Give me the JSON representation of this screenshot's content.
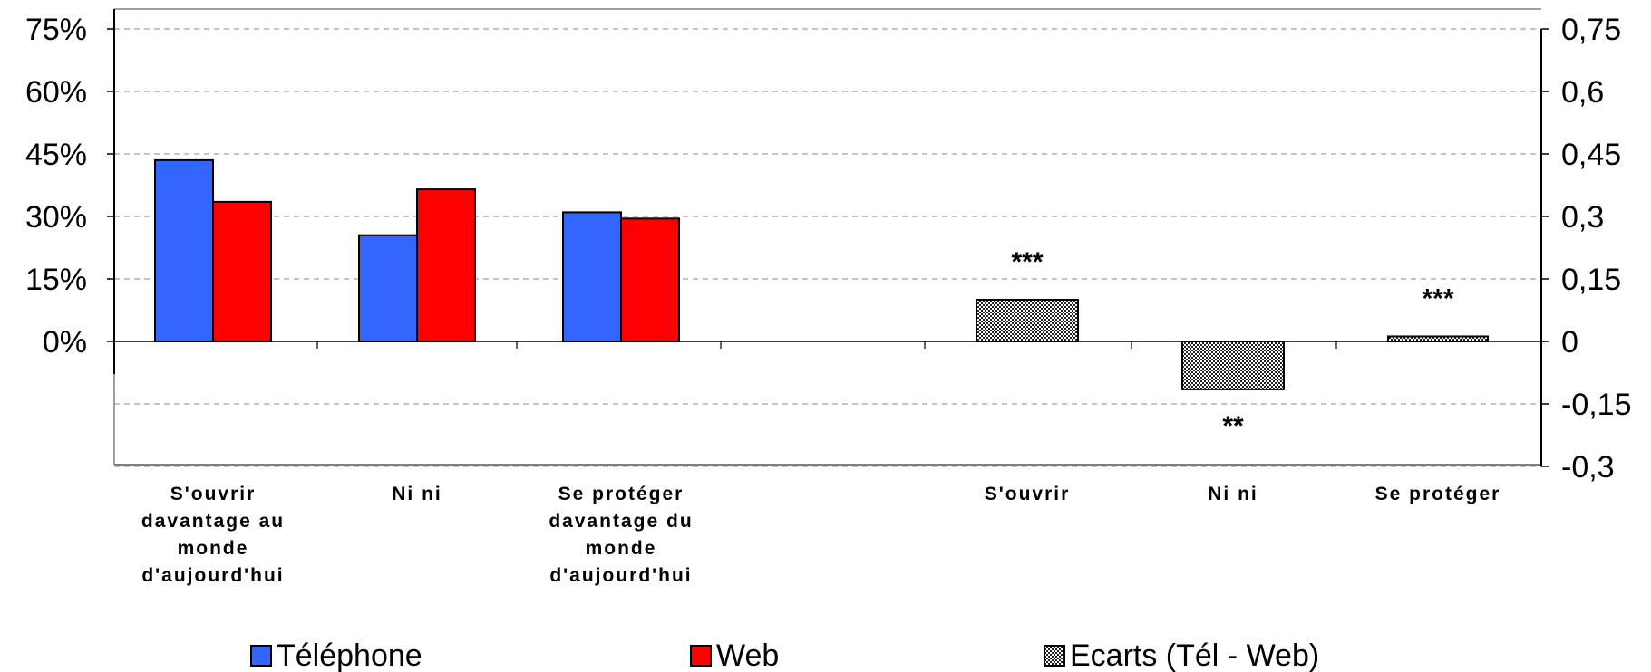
{
  "chart_data": {
    "type": "bar",
    "left_axis": {
      "ticks": [
        "75%",
        "60%",
        "45%",
        "30%",
        "15%",
        "0%"
      ],
      "tick_values": [
        75,
        60,
        45,
        30,
        15,
        0
      ],
      "range": [
        -30,
        75
      ],
      "unit": "%"
    },
    "right_axis": {
      "ticks": [
        "0,75",
        "0,6",
        "0,45",
        "0,3",
        "0,15",
        "0",
        "-0,15",
        "-0,3"
      ],
      "tick_values": [
        0.75,
        0.6,
        0.45,
        0.3,
        0.15,
        0,
        -0.15,
        -0.3
      ],
      "range": [
        -0.3,
        0.75
      ]
    },
    "grid": true,
    "groups_left": [
      {
        "label_lines": [
          "S'ouvrir",
          "davantage au",
          "monde",
          "d'aujourd'hui"
        ],
        "telephone": 43.5,
        "web": 33.5
      },
      {
        "label_lines": [
          "Ni ni"
        ],
        "telephone": 25.5,
        "web": 36.5
      },
      {
        "label_lines": [
          "Se protéger",
          "davantage du",
          "monde",
          "d'aujourd'hui"
        ],
        "telephone": 31,
        "web": 29.5
      }
    ],
    "groups_right": [
      {
        "label_lines": [
          "S'ouvrir"
        ],
        "ecart": 0.1,
        "sig": "***"
      },
      {
        "label_lines": [
          "Ni ni"
        ],
        "ecart": -0.115,
        "sig": "**"
      },
      {
        "label_lines": [
          "Se protéger"
        ],
        "ecart": 0.012,
        "sig": "***"
      }
    ],
    "series": [
      {
        "key": "telephone",
        "name": "Téléphone",
        "color": "#3366ff"
      },
      {
        "key": "web",
        "name": "Web",
        "color": "#ff0000"
      },
      {
        "key": "ecart",
        "name": "Ecarts (Tél - Web)",
        "color": "#555555"
      }
    ],
    "legend_position": "bottom"
  }
}
